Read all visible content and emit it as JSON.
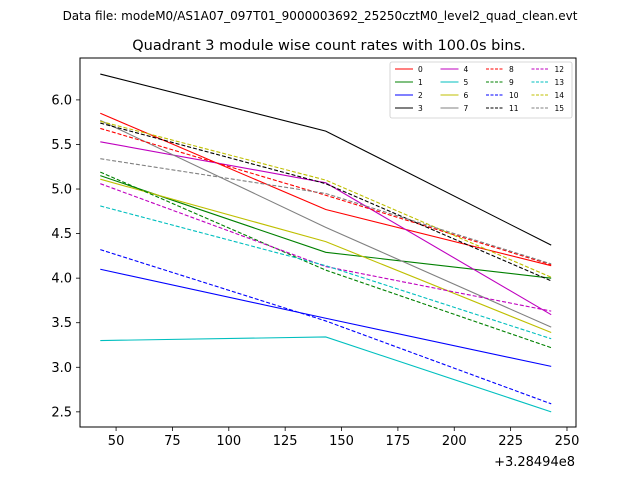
{
  "chart_data": {
    "type": "line",
    "suptitle": "Data file: modeM0/AS1A07_097T01_9000003692_25250cztM0_level2_quad_clean.evt",
    "title": "Quadrant 3 module wise count rates with 100.0s bins.",
    "xlabel": "",
    "ylabel": "",
    "x_offset_label": "+3.28494e8",
    "x": [
      43,
      143,
      243
    ],
    "xlim": [
      34,
      254
    ],
    "ylim": [
      2.33,
      6.47
    ],
    "xticks": [
      50,
      75,
      100,
      125,
      150,
      175,
      200,
      225,
      250
    ],
    "yticks": [
      2.5,
      3.0,
      3.5,
      4.0,
      4.5,
      5.0,
      5.5,
      6.0
    ],
    "ytick_labels": [
      "2.5",
      "3.0",
      "3.5",
      "4.0",
      "4.5",
      "5.0",
      "5.5",
      "6.0"
    ],
    "legend_position": "top-right",
    "series": [
      {
        "name": "0",
        "color": "#ff0000",
        "dashed": false,
        "values": [
          5.85,
          4.77,
          4.14
        ]
      },
      {
        "name": "1",
        "color": "#008000",
        "dashed": false,
        "values": [
          5.15,
          4.29,
          4.0
        ]
      },
      {
        "name": "2",
        "color": "#0000ff",
        "dashed": false,
        "values": [
          4.1,
          3.55,
          3.01
        ]
      },
      {
        "name": "3",
        "color": "#000000",
        "dashed": false,
        "values": [
          6.29,
          5.65,
          4.37
        ]
      },
      {
        "name": "4",
        "color": "#bf00bf",
        "dashed": false,
        "values": [
          5.53,
          5.07,
          3.59
        ]
      },
      {
        "name": "5",
        "color": "#00bfbf",
        "dashed": false,
        "values": [
          3.3,
          3.34,
          2.5
        ]
      },
      {
        "name": "6",
        "color": "#bfbf00",
        "dashed": false,
        "values": [
          5.11,
          4.41,
          3.39
        ]
      },
      {
        "name": "7",
        "color": "#808080",
        "dashed": false,
        "values": [
          5.77,
          4.57,
          3.45
        ]
      },
      {
        "name": "8",
        "color": "#ff0000",
        "dashed": true,
        "values": [
          5.68,
          4.93,
          4.15
        ]
      },
      {
        "name": "9",
        "color": "#008000",
        "dashed": true,
        "values": [
          5.19,
          4.09,
          3.22
        ]
      },
      {
        "name": "10",
        "color": "#0000ff",
        "dashed": true,
        "values": [
          4.32,
          3.52,
          2.59
        ]
      },
      {
        "name": "11",
        "color": "#000000",
        "dashed": true,
        "values": [
          5.74,
          5.06,
          3.97
        ]
      },
      {
        "name": "12",
        "color": "#bf00bf",
        "dashed": true,
        "values": [
          5.06,
          4.13,
          3.63
        ]
      },
      {
        "name": "13",
        "color": "#00bfbf",
        "dashed": true,
        "values": [
          4.81,
          4.14,
          3.32
        ]
      },
      {
        "name": "14",
        "color": "#bfbf00",
        "dashed": true,
        "values": [
          5.76,
          5.1,
          4.01
        ]
      },
      {
        "name": "15",
        "color": "#808080",
        "dashed": true,
        "values": [
          5.34,
          4.95,
          4.16
        ]
      }
    ]
  }
}
